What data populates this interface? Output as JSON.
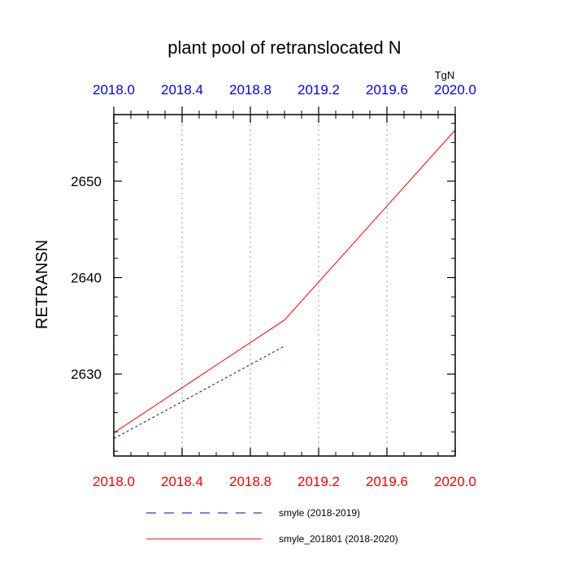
{
  "chart_data": {
    "type": "line",
    "title": "plant pool of retranslocated N",
    "ylabel": "RETRANSN",
    "units": "TgN",
    "xlim": [
      2018.0,
      2020.0
    ],
    "ylim": [
      2621.5,
      2656.9
    ],
    "x_ticks": [
      "2018.0",
      "2018.4",
      "2018.8",
      "2019.2",
      "2019.6",
      "2020.0"
    ],
    "x_tick_values": [
      2018.0,
      2018.4,
      2018.8,
      2019.2,
      2019.6,
      2020.0
    ],
    "y_ticks": [
      "2630",
      "2640",
      "2650"
    ],
    "y_tick_values": [
      2630,
      2640,
      2650
    ],
    "grid": "vertical dotted lines at x ticks",
    "legend_position": "below plot",
    "colors": {
      "top_axis_labels": "#0000ff",
      "bottom_axis_labels": "#ff0000"
    },
    "series": [
      {
        "name": "smyle (2018-2019)",
        "color": "#0000cc",
        "dash": "dashed",
        "x": [
          2018.0,
          2019.0
        ],
        "y": [
          2623.3,
          2632.9
        ]
      },
      {
        "name": "smyle_201801 (2018-2020)",
        "color": "#ff0000",
        "dash": "solid",
        "x": [
          2018.0,
          2019.0,
          2020.0
        ],
        "y": [
          2623.9,
          2635.6,
          2655.3
        ]
      }
    ]
  }
}
